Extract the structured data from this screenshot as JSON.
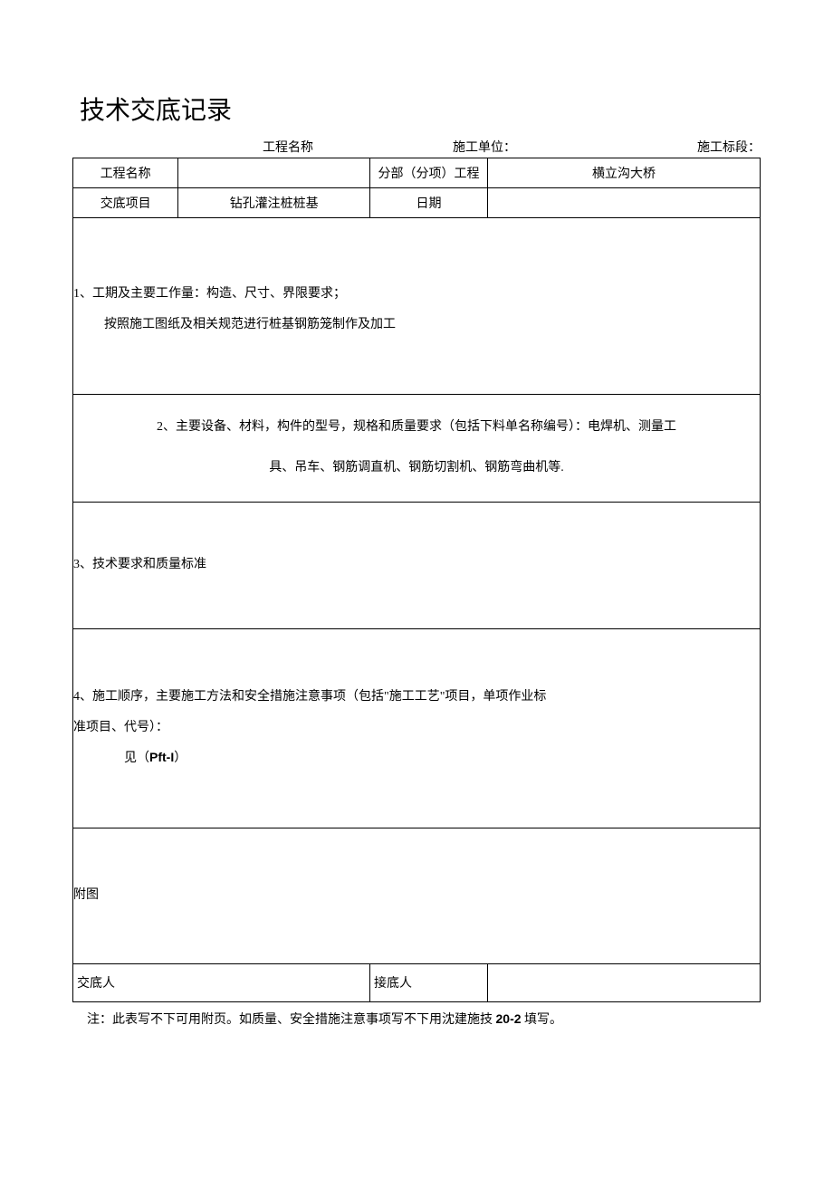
{
  "title": "技术交底记录",
  "header": {
    "project_name_label": "工程名称",
    "construction_unit_label": "施工单位：",
    "construction_section_label": "施工标段："
  },
  "table": {
    "row1": {
      "label": "工程名称",
      "value": "",
      "sub_label": "分部（分项）工程",
      "sub_value": "横立沟大桥"
    },
    "row2": {
      "label": "交底项目",
      "value": "钻孔灌注桩桩基",
      "date_label": "日期",
      "date_value": ""
    }
  },
  "sections": {
    "s1_line1": "1、工期及主要工作量：构造、尺寸、界限要求；",
    "s1_line2": "按照施工图纸及相关规范进行桩基钢筋笼制作及加工",
    "s2_line1": "2、主要设备、材料，构件的型号，规格和质量要求（包括下料单名称编号）：电焊机、测量工",
    "s2_line2": "具、吊车、钢筋调直机、钢筋切割机、钢筋弯曲机等.",
    "s3": "3、技术要求和质量标准",
    "s4_line1": "4、施工顺序，主要施工方法和安全措施注意事项（包括\"施工工艺\"项目，单项作业标",
    "s4_line2": "准项目、代号）：",
    "s4_line3_prefix": "见（",
    "s4_line3_bold": "Pft-I",
    "s4_line3_suffix": "）",
    "s5": "附图"
  },
  "signature": {
    "submitter_label": "交底人",
    "receiver_label": "接底人"
  },
  "footnote": {
    "prefix": "注：此表写不下可用附页。如质量、安全措施注意事项写不下用沈建施技 ",
    "bold": "20-2",
    "suffix": " 填写。"
  }
}
